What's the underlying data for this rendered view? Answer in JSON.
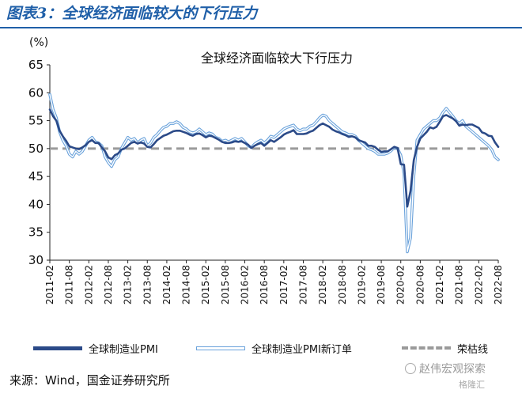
{
  "figure_title": "图表3：全球经济面临较大的下行压力",
  "source_note": "来源：Wind，国金证券研究所",
  "watermark": "赵伟宏观探索",
  "brand_mark": "格隆汇",
  "colors": {
    "pmi": "#2b4a88",
    "new_orders": "#6aa2db",
    "threshold": "#9a9a9a",
    "title": "#1f5fa8"
  },
  "chart_data": {
    "type": "line",
    "title": "全球经济面临较大下行压力",
    "ylabel": "(%)",
    "ylim": [
      30,
      65
    ],
    "yticks": [
      30,
      35,
      40,
      45,
      50,
      55,
      60,
      65
    ],
    "xticks": [
      "2011-02",
      "2011-08",
      "2012-02",
      "2012-08",
      "2013-02",
      "2013-08",
      "2014-02",
      "2014-08",
      "2015-02",
      "2015-08",
      "2016-02",
      "2016-08",
      "2017-02",
      "2017-08",
      "2018-02",
      "2018-08",
      "2019-02",
      "2019-08",
      "2020-02",
      "2020-08",
      "2021-02",
      "2021-08",
      "2022-02",
      "2022-08"
    ],
    "x_start": "2011-02",
    "grid": false,
    "legend_position": "bottom",
    "series": [
      {
        "name": "全球制造业PMI",
        "values": [
          57.0,
          55.8,
          55.0,
          53.2,
          52.2,
          51.4,
          50.4,
          50.2,
          50.0,
          49.9,
          50.2,
          50.6,
          51.2,
          51.5,
          51.0,
          51.0,
          50.2,
          49.5,
          48.4,
          48.1,
          48.8,
          49.1,
          49.8,
          50.0,
          50.5,
          51.0,
          51.2,
          50.9,
          51.1,
          50.9,
          50.3,
          50.2,
          50.8,
          51.5,
          51.9,
          52.3,
          52.5,
          52.8,
          53.1,
          53.2,
          53.2,
          53.0,
          52.8,
          52.5,
          52.3,
          52.6,
          52.7,
          52.4,
          52.0,
          52.3,
          52.2,
          51.9,
          51.6,
          51.2,
          51.0,
          51.0,
          51.1,
          51.3,
          51.2,
          51.3,
          51.0,
          50.7,
          50.1,
          50.5,
          50.8,
          51.0,
          50.5,
          51.0,
          51.5,
          51.2,
          51.6,
          52.0,
          52.5,
          52.8,
          53.0,
          53.3,
          52.6,
          52.6,
          52.6,
          52.7,
          53.0,
          53.2,
          53.7,
          54.2,
          54.5,
          54.2,
          53.9,
          53.4,
          53.1,
          52.9,
          52.6,
          52.4,
          52.1,
          52.2,
          52.0,
          51.5,
          51.3,
          51.1,
          50.5,
          50.5,
          50.3,
          49.8,
          49.4,
          49.5,
          49.5,
          49.9,
          50.3,
          50.1,
          47.2,
          47.1,
          39.6,
          42.4,
          47.9,
          50.3,
          51.8,
          52.4,
          53.0,
          53.8,
          53.6,
          53.9,
          54.8,
          55.8,
          56.0,
          55.7,
          55.4,
          54.9,
          54.1,
          54.3,
          54.2,
          54.3,
          54.3,
          54.0,
          53.7,
          52.9,
          52.7,
          52.3,
          52.2,
          51.1,
          50.3
        ]
      },
      {
        "name": "全球制造业PMI新订单",
        "values": [
          59.7,
          57.0,
          55.5,
          53.0,
          51.5,
          50.5,
          49.0,
          48.5,
          49.5,
          49.0,
          49.5,
          50.5,
          51.5,
          52.0,
          51.2,
          51.0,
          50.5,
          48.5,
          47.5,
          46.8,
          48.0,
          48.5,
          50.0,
          51.0,
          52.0,
          51.5,
          51.8,
          51.0,
          51.5,
          51.8,
          50.5,
          51.0,
          52.0,
          52.5,
          53.2,
          53.8,
          54.0,
          54.5,
          54.5,
          54.8,
          54.5,
          53.8,
          53.5,
          53.0,
          52.8,
          53.0,
          53.5,
          53.0,
          52.5,
          52.8,
          52.6,
          52.0,
          51.8,
          51.3,
          51.5,
          51.2,
          51.5,
          51.8,
          51.5,
          51.8,
          51.2,
          50.5,
          50.2,
          50.8,
          51.2,
          51.5,
          51.0,
          51.5,
          52.2,
          52.0,
          52.5,
          53.0,
          53.5,
          53.8,
          54.0,
          54.2,
          53.5,
          53.2,
          53.5,
          53.5,
          54.0,
          54.2,
          54.8,
          55.5,
          56.0,
          55.8,
          55.0,
          54.5,
          54.0,
          53.5,
          53.0,
          52.8,
          52.5,
          52.5,
          52.2,
          51.5,
          51.0,
          50.5,
          50.0,
          49.8,
          49.5,
          49.0,
          49.0,
          49.0,
          49.2,
          49.6,
          50.2,
          50.0,
          48.8,
          45.5,
          31.5,
          34.0,
          45.0,
          51.5,
          52.5,
          53.5,
          54.0,
          54.5,
          55.0,
          55.0,
          55.5,
          56.5,
          57.2,
          56.5,
          55.8,
          55.0,
          54.5,
          55.0,
          54.0,
          53.5,
          53.0,
          52.5,
          52.0,
          51.5,
          51.0,
          50.5,
          49.8,
          48.5,
          48.0
        ]
      },
      {
        "name": "荣枯线",
        "values": [
          50,
          50
        ]
      }
    ]
  }
}
